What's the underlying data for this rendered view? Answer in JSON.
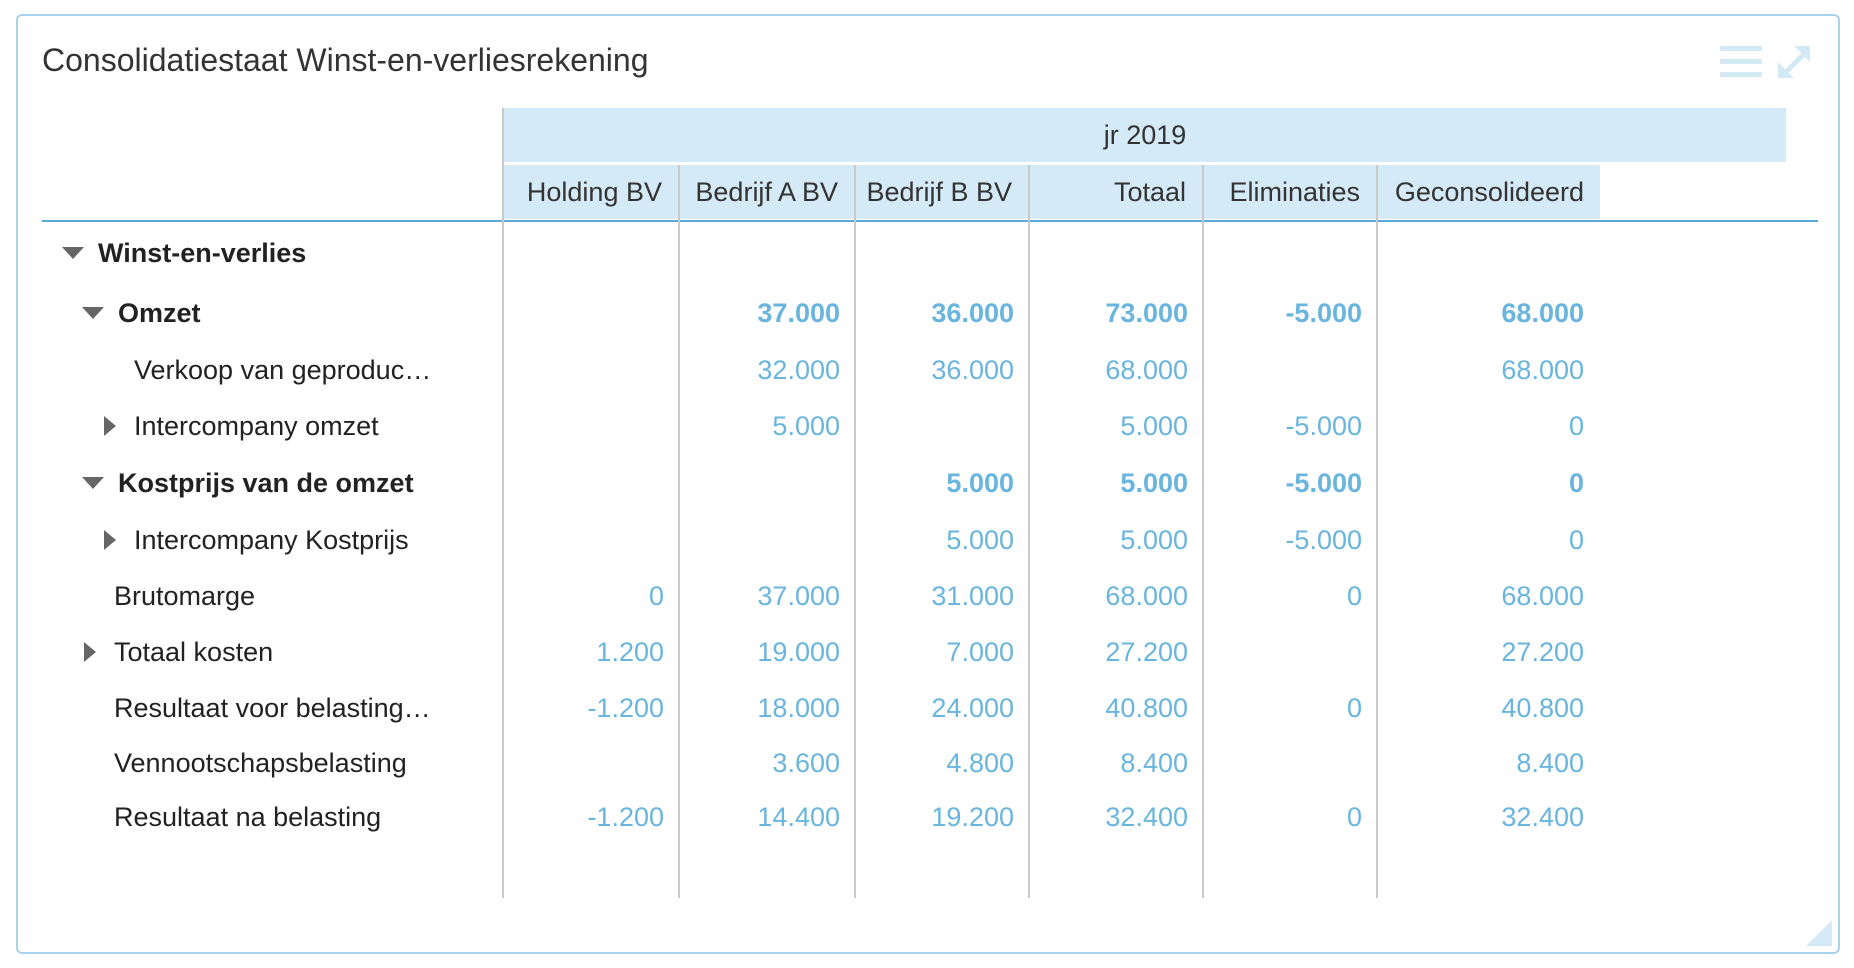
{
  "widget": {
    "title": "Consolidatiestaat Winst-en-verliesrekening",
    "menu_icon": "hamburger-menu-icon",
    "expand_icon": "expand-arrows-icon"
  },
  "header": {
    "period": "jr 2019",
    "columns": [
      "Holding BV",
      "Bedrijf A BV",
      "Bedrijf B BV",
      "Totaal",
      "Eliminaties",
      "Geconsolideerd"
    ]
  },
  "colors": {
    "header_bg": "#d5eaf7",
    "value_text": "#69b5de",
    "border": "#a9d3ec"
  },
  "rows": [
    {
      "label": "Winst-en-verlies",
      "toggle": "collapse",
      "bold": true,
      "values": [
        "",
        "",
        "",
        "",
        "",
        ""
      ]
    },
    {
      "label": "Omzet",
      "toggle": "collapse",
      "bold": true,
      "values": [
        "",
        "37.000",
        "36.000",
        "73.000",
        "-5.000",
        "68.000"
      ]
    },
    {
      "label": "Verkoop van geproduc…",
      "toggle": "",
      "bold": false,
      "values": [
        "",
        "32.000",
        "36.000",
        "68.000",
        "",
        "68.000"
      ]
    },
    {
      "label": "Intercompany omzet",
      "toggle": "expand",
      "bold": false,
      "values": [
        "",
        "5.000",
        "",
        "5.000",
        "-5.000",
        "0"
      ]
    },
    {
      "label": "Kostprijs van de omzet",
      "toggle": "collapse",
      "bold": true,
      "values": [
        "",
        "",
        "5.000",
        "5.000",
        "-5.000",
        "0"
      ]
    },
    {
      "label": "Intercompany Kostprijs",
      "toggle": "expand",
      "bold": false,
      "values": [
        "",
        "",
        "5.000",
        "5.000",
        "-5.000",
        "0"
      ]
    },
    {
      "label": "Brutomarge",
      "toggle": "",
      "bold": false,
      "values": [
        "0",
        "37.000",
        "31.000",
        "68.000",
        "0",
        "68.000"
      ]
    },
    {
      "label": "Totaal kosten",
      "toggle": "expand",
      "bold": false,
      "values": [
        "1.200",
        "19.000",
        "7.000",
        "27.200",
        "",
        "27.200"
      ]
    },
    {
      "label": "Resultaat voor belasting…",
      "toggle": "",
      "bold": false,
      "values": [
        "-1.200",
        "18.000",
        "24.000",
        "40.800",
        "0",
        "40.800"
      ]
    },
    {
      "label": "Vennootschapsbelasting",
      "toggle": "",
      "bold": false,
      "values": [
        "",
        "3.600",
        "4.800",
        "8.400",
        "",
        "8.400"
      ]
    },
    {
      "label": "Resultaat na belasting",
      "toggle": "",
      "bold": false,
      "values": [
        "-1.200",
        "14.400",
        "19.200",
        "32.400",
        "0",
        "32.400"
      ]
    }
  ]
}
